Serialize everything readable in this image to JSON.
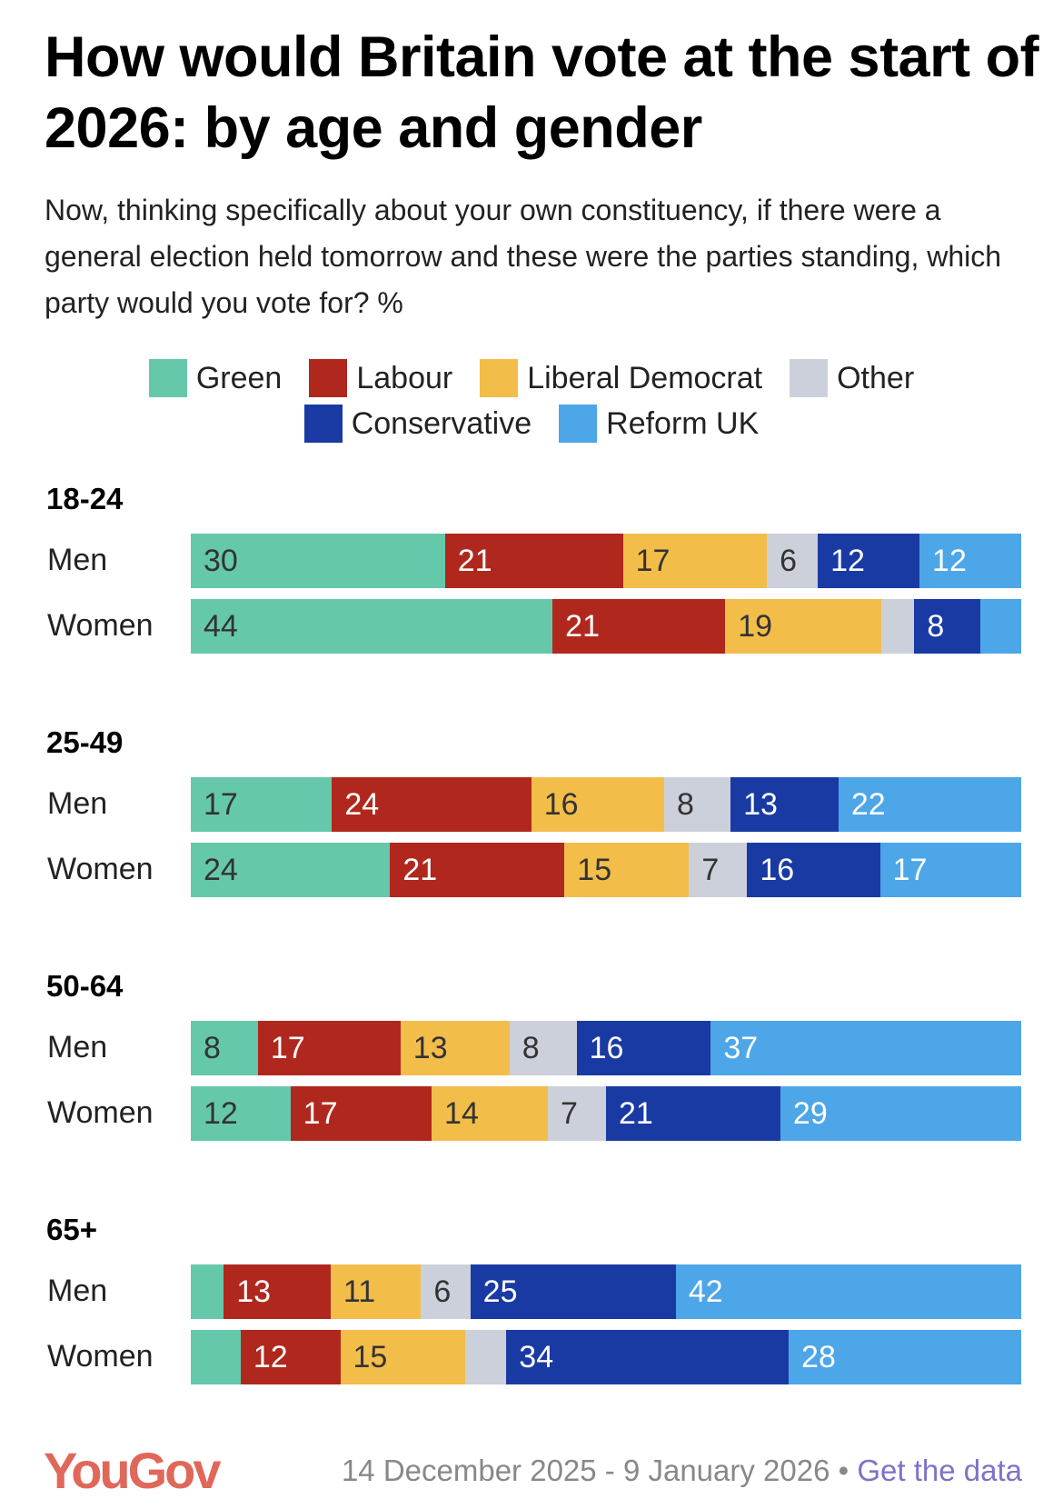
{
  "chart_data": {
    "type": "bar",
    "stacked": true,
    "orientation": "horizontal",
    "title": "How would Britain vote at the start of 2026: by age and gender",
    "subtitle": "Now, thinking specifically about your own constituency, if there were a general election held tomorrow and these were the parties standing, which party would you vote for? %",
    "legend_placement": "top",
    "legend": [
      {
        "name": "Green",
        "color": "#66C8AB"
      },
      {
        "name": "Labour",
        "color": "#B0281D"
      },
      {
        "name": "Liberal Democrat",
        "color": "#F3BD4A"
      },
      {
        "name": "Other",
        "color": "#CCD0DA"
      },
      {
        "name": "Conservative",
        "color": "#1A3AA3"
      },
      {
        "name": "Reform UK",
        "color": "#4DA6E8"
      }
    ],
    "series_order": [
      "Green",
      "Labour",
      "Liberal Democrat",
      "Other",
      "Conservative",
      "Reform UK"
    ],
    "groups": [
      {
        "name": "18-24",
        "rows": [
          {
            "label": "Men",
            "values": [
              30,
              21,
              17,
              6,
              12,
              12
            ],
            "shown": [
              true,
              true,
              true,
              true,
              true,
              true
            ]
          },
          {
            "label": "Women",
            "values": [
              44,
              21,
              19,
              4,
              8,
              5
            ],
            "shown": [
              true,
              true,
              true,
              false,
              true,
              false
            ]
          }
        ]
      },
      {
        "name": "25-49",
        "rows": [
          {
            "label": "Men",
            "values": [
              17,
              24,
              16,
              8,
              13,
              22
            ],
            "shown": [
              true,
              true,
              true,
              true,
              true,
              true
            ]
          },
          {
            "label": "Women",
            "values": [
              24,
              21,
              15,
              7,
              16,
              17
            ],
            "shown": [
              true,
              true,
              true,
              true,
              true,
              true
            ]
          }
        ]
      },
      {
        "name": "50-64",
        "rows": [
          {
            "label": "Men",
            "values": [
              8,
              17,
              13,
              8,
              16,
              37
            ],
            "shown": [
              true,
              true,
              true,
              true,
              true,
              true
            ]
          },
          {
            "label": "Women",
            "values": [
              12,
              17,
              14,
              7,
              21,
              29
            ],
            "shown": [
              true,
              true,
              true,
              true,
              true,
              true
            ]
          }
        ]
      },
      {
        "name": "65+",
        "rows": [
          {
            "label": "Men",
            "values": [
              4,
              13,
              11,
              6,
              25,
              42
            ],
            "shown": [
              false,
              true,
              true,
              true,
              true,
              true
            ]
          },
          {
            "label": "Women",
            "values": [
              6,
              12,
              15,
              5,
              34,
              28
            ],
            "shown": [
              false,
              true,
              true,
              false,
              true,
              true
            ]
          }
        ]
      }
    ]
  },
  "footer": {
    "brand": "YouGov",
    "dates": "14 December 2025 - 9 January 2026",
    "sep": " • ",
    "link": "Get the data"
  }
}
